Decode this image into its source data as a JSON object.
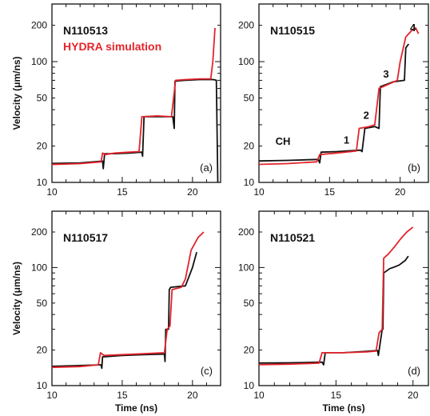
{
  "chart_data": [
    {
      "type": "line",
      "panel": "(a)",
      "shot": "N110513",
      "legend_text": "HYDRA simulation",
      "ylabel": "Velocity (μm/ns)",
      "xlabel": "",
      "xlim": [
        10,
        22
      ],
      "ylim": [
        10,
        300
      ],
      "yscale": "log",
      "xticks": [
        10,
        15,
        20
      ],
      "yticks": [
        10,
        20,
        50,
        100,
        200
      ],
      "annotations": [],
      "series": [
        {
          "color": "#111111",
          "x": [
            9.3,
            12,
            13.6,
            13.65,
            13.75,
            14.5,
            15.5,
            16.4,
            16.45,
            16.55,
            17.5,
            18.6,
            18.7,
            18.75,
            19.5,
            20.5,
            21.5,
            21.7,
            21.8
          ],
          "y": [
            14.3,
            14.5,
            15,
            13,
            17.3,
            17.3,
            17.5,
            17.8,
            16.5,
            35,
            35,
            35,
            28,
            69,
            70,
            71,
            71,
            70,
            10
          ]
        },
        {
          "color": "#e3242b",
          "x": [
            9.3,
            12,
            13.5,
            13.6,
            13.8,
            14.5,
            15.5,
            16.2,
            16.4,
            17.5,
            18.5,
            18.8,
            19.5,
            20.5,
            21.3,
            21.45,
            21.6
          ],
          "y": [
            14,
            14.3,
            14.8,
            17.5,
            17,
            17.5,
            17.8,
            18,
            35,
            35.5,
            35,
            70,
            71,
            72,
            72,
            100,
            190
          ]
        }
      ]
    },
    {
      "type": "line",
      "panel": "(b)",
      "shot": "N110515",
      "ylabel": "",
      "xlabel": "",
      "xlim": [
        10,
        22
      ],
      "ylim": [
        10,
        300
      ],
      "yscale": "log",
      "xticks": [
        10,
        15,
        20
      ],
      "yticks": [
        10,
        20,
        50,
        100,
        200
      ],
      "annotations": [
        "CH",
        "1",
        "2",
        "3",
        "4"
      ],
      "series": [
        {
          "color": "#111111",
          "x": [
            9.3,
            12,
            14.2,
            14.3,
            14.4,
            15.5,
            16.5,
            17.2,
            17.3,
            17.5,
            18.2,
            18.5,
            18.6,
            19.5,
            20.3,
            20.4,
            20.6
          ],
          "y": [
            15,
            15.2,
            15.5,
            14.5,
            17.8,
            18,
            18.3,
            18.5,
            18,
            28,
            29,
            28,
            62,
            68,
            70,
            130,
            140
          ]
        },
        {
          "color": "#e3242b",
          "x": [
            9.3,
            12,
            14.1,
            14.3,
            15.5,
            16.5,
            16.9,
            17.1,
            17.8,
            18.2,
            18.5,
            19.3,
            19.8,
            20.0,
            20.4,
            20.8,
            21.1,
            21.3
          ],
          "y": [
            14,
            14.3,
            14.8,
            17,
            17.5,
            18,
            18.2,
            28,
            29,
            30,
            60,
            66,
            70,
            100,
            160,
            180,
            190,
            170
          ]
        }
      ]
    },
    {
      "type": "line",
      "panel": "(c)",
      "shot": "N110517",
      "ylabel": "Velocity (μm/ns)",
      "xlabel": "Time (ns)",
      "xlim": [
        10,
        22
      ],
      "ylim": [
        10,
        300
      ],
      "yscale": "log",
      "xticks": [
        10,
        15,
        20
      ],
      "yticks": [
        10,
        20,
        50,
        100,
        200
      ],
      "annotations": [],
      "series": [
        {
          "color": "#111111",
          "x": [
            9.3,
            12,
            13.5,
            13.55,
            13.6,
            15,
            16.5,
            18,
            18.05,
            18.1,
            18.3,
            18.35,
            18.45,
            19.5,
            20,
            20.3
          ],
          "y": [
            14.5,
            14.8,
            15,
            14,
            17.5,
            18,
            18.3,
            18.5,
            16,
            30,
            30,
            65,
            68,
            70,
            100,
            135
          ]
        },
        {
          "color": "#e3242b",
          "x": [
            9.3,
            12,
            13.3,
            13.45,
            13.7,
            15,
            16.5,
            18,
            18.2,
            18.4,
            18.55,
            19.2,
            19.5,
            19.9,
            20.4,
            20.8
          ],
          "y": [
            14.2,
            14.5,
            15,
            19,
            18,
            18.3,
            18.6,
            19,
            30,
            32,
            65,
            68,
            80,
            140,
            180,
            200
          ]
        }
      ]
    },
    {
      "type": "line",
      "panel": "(d)",
      "shot": "N110521",
      "ylabel": "",
      "xlabel": "Time (ns)",
      "xlim": [
        10,
        21
      ],
      "ylim": [
        10,
        300
      ],
      "yscale": "log",
      "xticks": [
        10,
        15,
        20
      ],
      "yticks": [
        10,
        20,
        50,
        100,
        200
      ],
      "annotations": [],
      "series": [
        {
          "color": "#111111",
          "x": [
            9.3,
            12,
            14.1,
            14.2,
            14.3,
            15.5,
            17,
            17.7,
            17.75,
            18.0,
            18.05,
            18.1,
            18.5,
            18.7,
            19.1,
            19.5,
            19.7
          ],
          "y": [
            15.5,
            15.6,
            15.8,
            15,
            19,
            19,
            19.5,
            19.8,
            18,
            30,
            30,
            90,
            98,
            100,
            105,
            115,
            125
          ]
        },
        {
          "color": "#e3242b",
          "x": [
            9.3,
            12,
            13.9,
            14.1,
            15.5,
            17,
            17.6,
            17.8,
            18.0,
            18.1,
            18.4,
            18.8,
            19.2,
            19.6,
            20.0
          ],
          "y": [
            15,
            15.2,
            15.5,
            19,
            19,
            19.3,
            19.6,
            28,
            30,
            120,
            130,
            150,
            175,
            200,
            220
          ]
        }
      ]
    }
  ]
}
